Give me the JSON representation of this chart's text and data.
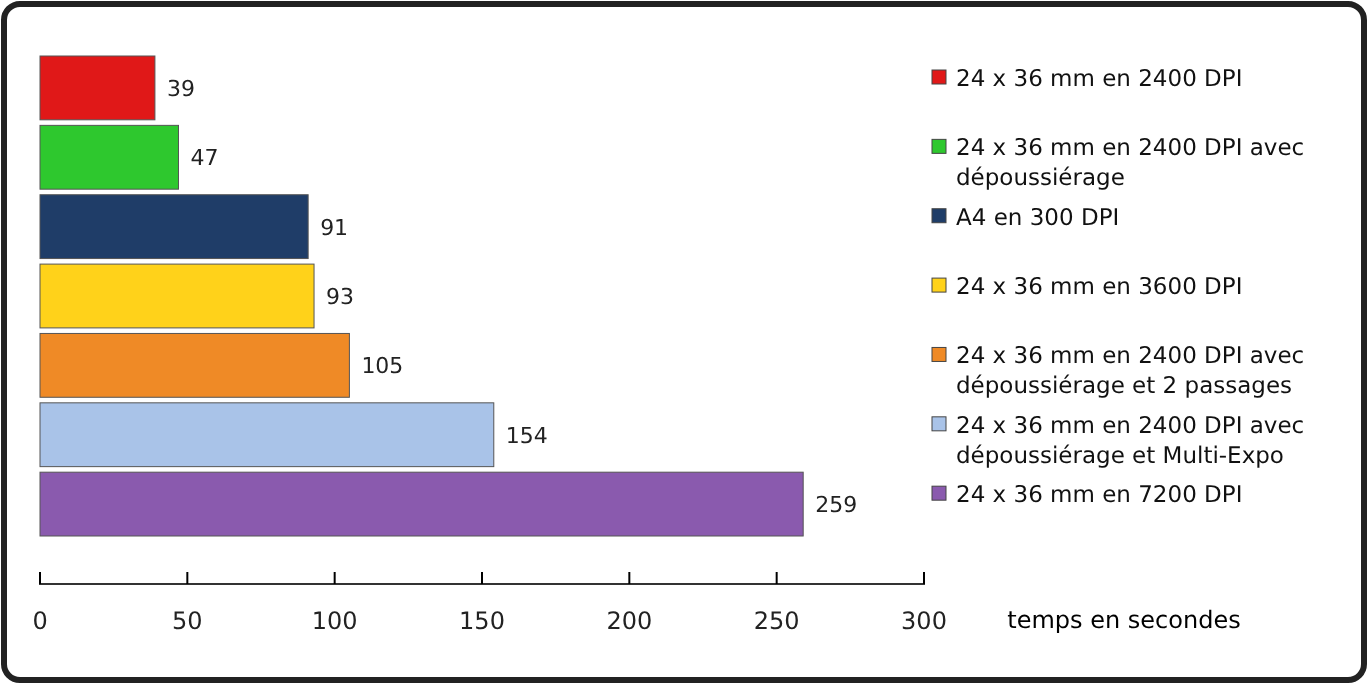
{
  "chart_data": {
    "type": "bar",
    "orientation": "horizontal",
    "categories": [
      null,
      null,
      null,
      null,
      null,
      null,
      null
    ],
    "series": [
      {
        "name": "24 x 36 mm en 2400  DPI",
        "color": "#e01818",
        "values": [
          39,
          null,
          null,
          null,
          null,
          null,
          null
        ]
      },
      {
        "name": "24 x 36 mm en 2400  DPI avec dépoussiérage",
        "color": "#2ec82e",
        "values": [
          null,
          47,
          null,
          null,
          null,
          null,
          null
        ]
      },
      {
        "name": "A4 en 300 DPI",
        "color": "#1f3d68",
        "values": [
          null,
          null,
          91,
          null,
          null,
          null,
          null
        ]
      },
      {
        "name": "24 x 36 mm en 3600  DPI",
        "color": "#ffd21a",
        "values": [
          null,
          null,
          null,
          93,
          null,
          null,
          null
        ]
      },
      {
        "name": "24 x 36 mm en 2400  DPI avec dépoussiérage et 2 passages",
        "color": "#ef8a26",
        "values": [
          null,
          null,
          null,
          null,
          105,
          null,
          null
        ]
      },
      {
        "name": "24 x 36 mm en 2400  DPI avec dépoussiérage et Multi-Expo",
        "color": "#a9c3e8",
        "values": [
          null,
          null,
          null,
          null,
          null,
          154,
          null
        ]
      },
      {
        "name": "24 x 36 mm en 7200  DPI",
        "color": "#8a5aae",
        "values": [
          null,
          null,
          null,
          null,
          null,
          null,
          259
        ]
      }
    ],
    "stacked": true,
    "xlim": [
      0,
      300
    ],
    "xticks": [
      0,
      50,
      100,
      150,
      200,
      250,
      300
    ],
    "xlabel": "temps en secondes",
    "data_labels": true,
    "legend": "right",
    "tick_labels": "x"
  }
}
